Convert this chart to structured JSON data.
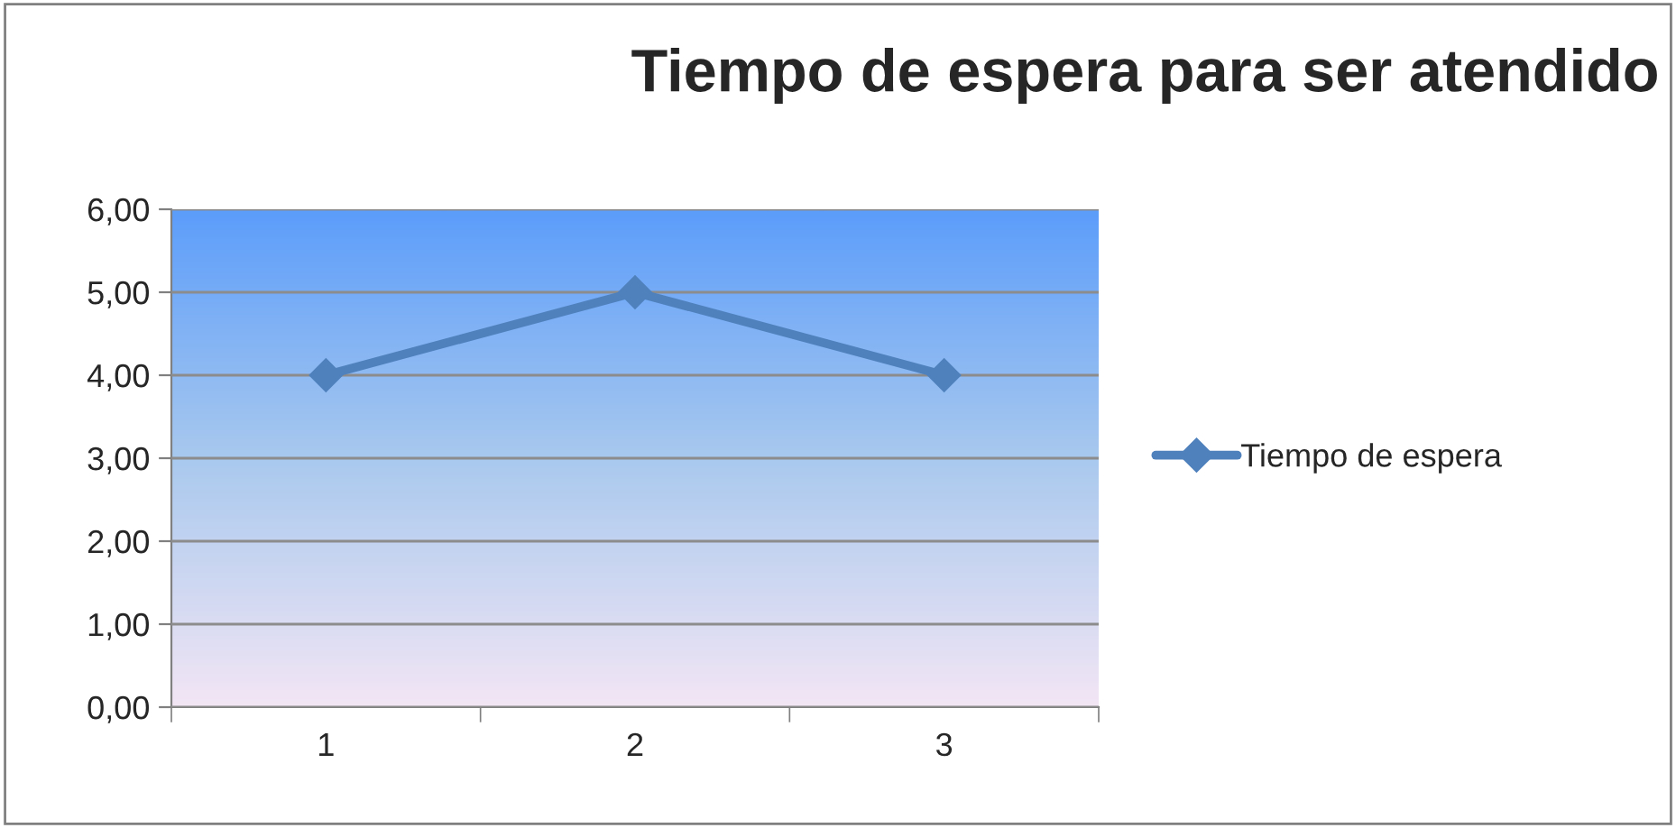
{
  "chart_data": {
    "type": "line",
    "title": "Tiempo de espera para ser atendido",
    "categories": [
      "1",
      "2",
      "3"
    ],
    "series": [
      {
        "name": "Tiempo de espera",
        "color": "#4f81bd",
        "values": [
          4,
          5,
          4
        ]
      }
    ],
    "ylim": [
      0,
      6
    ],
    "yticks": [
      {
        "value": 0,
        "label": "0,00"
      },
      {
        "value": 1,
        "label": "1,00"
      },
      {
        "value": 2,
        "label": "2,00"
      },
      {
        "value": 3,
        "label": "3,00"
      },
      {
        "value": 4,
        "label": "4,00"
      },
      {
        "value": 5,
        "label": "5,00"
      },
      {
        "value": 6,
        "label": "6,00"
      }
    ],
    "grid": "y",
    "legend": "right",
    "marker": "diamond",
    "line_style": "solid"
  }
}
